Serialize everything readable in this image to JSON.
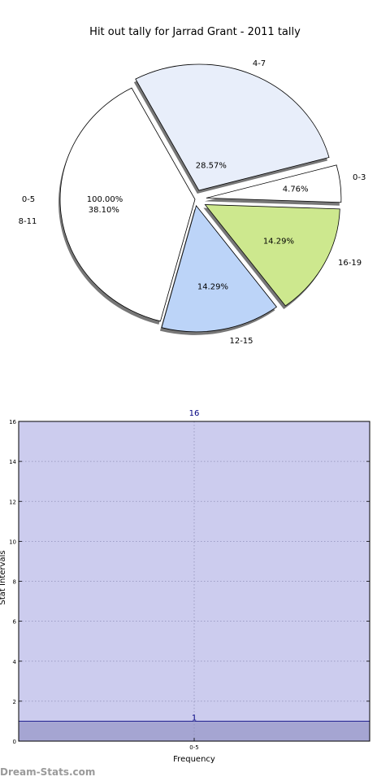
{
  "chart_data": [
    {
      "type": "pie",
      "title": "Hit out tally for Jarrad Grant - 2011 tally",
      "slices": [
        {
          "label": "4-7",
          "pct_label": "28.57%",
          "value": 28.57,
          "color": "#e8eefa"
        },
        {
          "label": "0-3",
          "pct_label": "4.76%",
          "value": 4.76,
          "color": "#ffffff"
        },
        {
          "label": "16-19",
          "pct_label": "14.29%",
          "value": 14.29,
          "color": "#cde88e"
        },
        {
          "label": "12-15",
          "pct_label": "14.29%",
          "value": 14.29,
          "color": "#bcd4f8"
        },
        {
          "label": "8-11",
          "pct_label": "38.10%",
          "value": 38.1,
          "color": "#ffffff"
        }
      ],
      "overlay_slice": {
        "label": "0-5",
        "pct_label": "100.00%",
        "value": 100
      }
    },
    {
      "type": "bar",
      "categories": [
        "0-5"
      ],
      "values": [
        1
      ],
      "value_labels": [
        "1"
      ],
      "top_label": "16",
      "xlabel": "Frequency",
      "ylabel": "Stat Intervals",
      "ylim": [
        0,
        16
      ],
      "yticks": [
        "0",
        "2",
        "4",
        "6",
        "8",
        "10",
        "12",
        "14",
        "16"
      ],
      "grid": true,
      "colors": {
        "background": "#ccccee",
        "bar": "#a5a5d2",
        "bar_edge": "#000080",
        "grid": "#8f8fb8"
      }
    }
  ],
  "watermark": "Dream-Stats.com"
}
